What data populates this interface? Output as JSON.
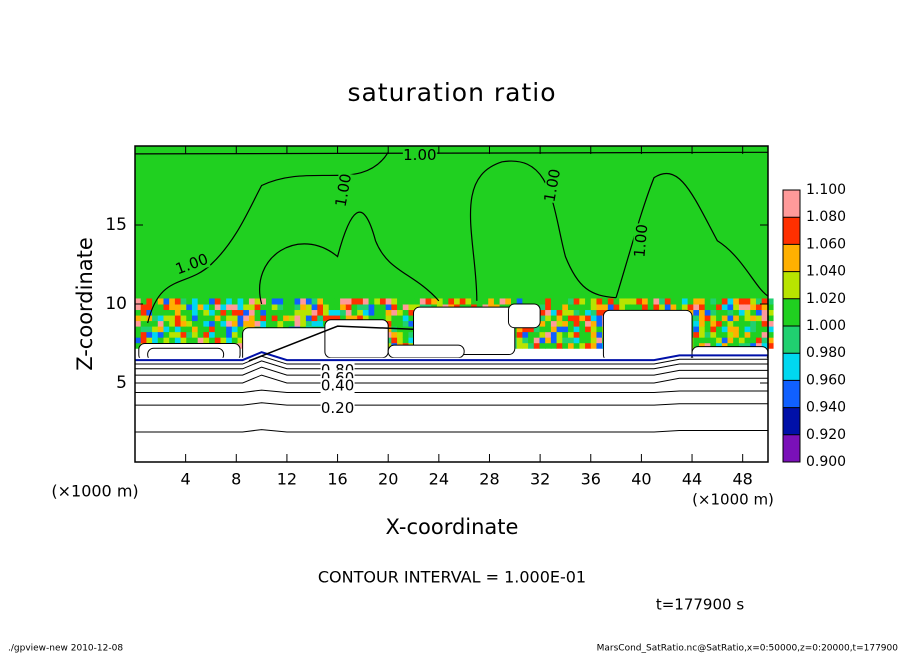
{
  "chart_data": {
    "type": "contour",
    "title": "saturation ratio",
    "xlabel": "X-coordinate",
    "ylabel": "Z-coordinate",
    "x_unit": "(×1000 m)",
    "y_unit": "(×1000 m)",
    "xlim": [
      0,
      50
    ],
    "xticks": [
      4,
      8,
      12,
      16,
      20,
      24,
      28,
      32,
      36,
      40,
      44,
      48
    ],
    "ylim": [
      0,
      20
    ],
    "yticks": [
      5,
      10,
      15
    ],
    "colorbar_ticks": [
      {
        "value": 0.9,
        "label": "0.900"
      },
      {
        "value": 0.92,
        "label": "0.920"
      },
      {
        "value": 0.94,
        "label": "0.940"
      },
      {
        "value": 0.96,
        "label": "0.960"
      },
      {
        "value": 0.98,
        "label": "0.980"
      },
      {
        "value": 1.0,
        "label": "1.000"
      },
      {
        "value": 1.02,
        "label": "1.020"
      },
      {
        "value": 1.04,
        "label": "1.040"
      },
      {
        "value": 1.06,
        "label": "1.060"
      },
      {
        "value": 1.08,
        "label": "1.080"
      },
      {
        "value": 1.1,
        "label": "1.100"
      }
    ],
    "colors": [
      "#7a10b8",
      "#0010a8",
      "#1060ff",
      "#00d8f0",
      "#20d070",
      "#20d020",
      "#b8e400",
      "#ffb000",
      "#ff3000",
      "#ff9a9a"
    ],
    "contour_labels": [
      {
        "value": 1.0,
        "label": "1.00"
      },
      {
        "value": 1.0,
        "label": "1.00"
      },
      {
        "value": 1.0,
        "label": "1.00"
      },
      {
        "value": 1.0,
        "label": "1.00"
      },
      {
        "value": 1.0,
        "label": "1.00"
      },
      {
        "value": 0.8,
        "label": "0.80"
      },
      {
        "value": 0.6,
        "label": "0.60"
      },
      {
        "value": 0.4,
        "label": "0.40"
      },
      {
        "value": 0.2,
        "label": "0.20"
      }
    ],
    "contour_interval": "CONTOUR INTERVAL = 1.000E-01",
    "time": "t=177900 s",
    "footer_left": "./gpview-new   2010-12-08",
    "footer_right": "MarsCond_SatRatio.nc@SatRatio,x=0:50000,z=0:20000,t=177900"
  }
}
